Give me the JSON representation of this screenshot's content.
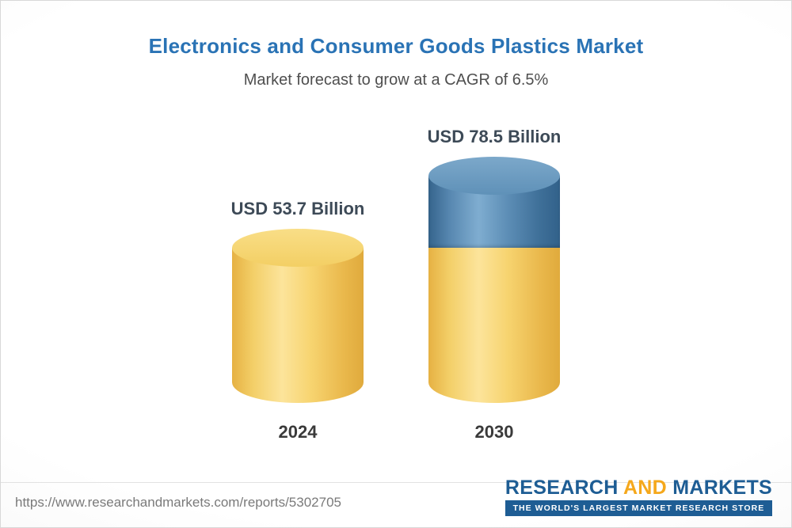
{
  "chart_data": {
    "type": "bar",
    "title": "Electronics and Consumer Goods Plastics Market",
    "subtitle": "Market forecast to grow at a CAGR of 6.5%",
    "unit": "USD Billion",
    "categories": [
      "2024",
      "2030"
    ],
    "values": [
      53.7,
      78.5
    ],
    "bars": [
      {
        "category": "2024",
        "value": 53.7,
        "label": "USD 53.7 Billion",
        "segments": [
          "base"
        ]
      },
      {
        "category": "2030",
        "value": 78.5,
        "label": "USD 78.5 Billion",
        "segments": [
          "base",
          "growth"
        ]
      }
    ],
    "cagr": "6.5%",
    "ylim": [
      0,
      80
    ],
    "grid": false,
    "legend_position": "none",
    "bar_colors": {
      "base": "#F2CB5F",
      "growth": "#4479A6"
    }
  },
  "footer": {
    "url": "https://www.researchandmarkets.com/reports/5302705",
    "logo": {
      "word1": "RESEARCH",
      "word2": "AND",
      "word3": "MARKETS",
      "tagline": "THE WORLD'S LARGEST MARKET RESEARCH STORE"
    }
  },
  "colors": {
    "title": "#2A73B5",
    "subtitle": "#4F4F4F",
    "value_label": "#3D4A57",
    "logo_blue": "#1E5D94",
    "logo_yellow": "#F5A81C"
  }
}
